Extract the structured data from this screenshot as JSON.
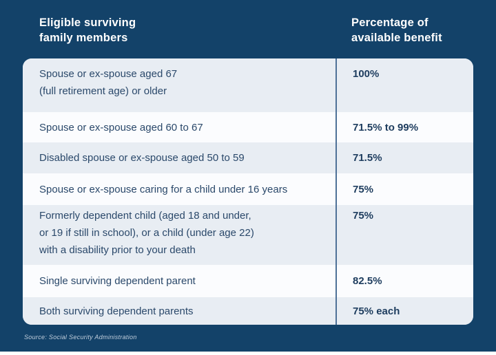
{
  "colors": {
    "panel_background": "#134269",
    "row_light": "#e8edf3",
    "row_white": "#fbfcfe",
    "divider": "#4d7097",
    "header_text": "#ffffff",
    "row_text": "#2a486a",
    "value_text": "#1d3c5e"
  },
  "header": {
    "members_label": "Eligible surviving\nfamily members",
    "percent_label": "Percentage of\navailable benefit"
  },
  "table": {
    "rows": [
      {
        "member": "Spouse or ex-spouse aged 67\n(full retirement age) or older",
        "percentage": "100%"
      },
      {
        "member": "Spouse or ex-spouse aged 60 to 67",
        "percentage": "71.5% to 99%"
      },
      {
        "member": "Disabled spouse or ex-spouse aged 50 to 59",
        "percentage": "71.5%"
      },
      {
        "member": "Spouse or ex-spouse caring for a child under 16 years",
        "percentage": "75%"
      },
      {
        "member": "Formerly dependent child (aged 18 and under,\nor 19 if still in school), or a child (under age 22)\nwith a disability prior to your death",
        "percentage": "75%"
      },
      {
        "member": "Single surviving dependent parent",
        "percentage": "82.5%"
      },
      {
        "member": "Both surviving dependent parents",
        "percentage": "75% each"
      }
    ]
  },
  "footer": {
    "source_note": "Source: Social Security Administration"
  },
  "chart_data": {
    "type": "table",
    "title": "Survivor benefits by eligible family member",
    "columns": [
      "Eligible surviving family members",
      "Percentage of available benefit"
    ],
    "rows": [
      [
        "Spouse or ex-spouse aged 67 (full retirement age) or older",
        "100%"
      ],
      [
        "Spouse or ex-spouse aged 60 to 67",
        "71.5% to 99%"
      ],
      [
        "Disabled spouse or ex-spouse aged 50 to 59",
        "71.5%"
      ],
      [
        "Spouse or ex-spouse caring for a child under 16 years",
        "75%"
      ],
      [
        "Formerly dependent child (aged 18 and under, or 19 if still in school), or a child (under age 22) with a disability prior to your death",
        "75%"
      ],
      [
        "Single surviving dependent parent",
        "82.5%"
      ],
      [
        "Both surviving dependent parents",
        "75% each"
      ]
    ],
    "source": "Source: Social Security Administration",
    "layout": {
      "grid": false,
      "alternating_row_shading": true,
      "value_column_bold": true
    }
  }
}
